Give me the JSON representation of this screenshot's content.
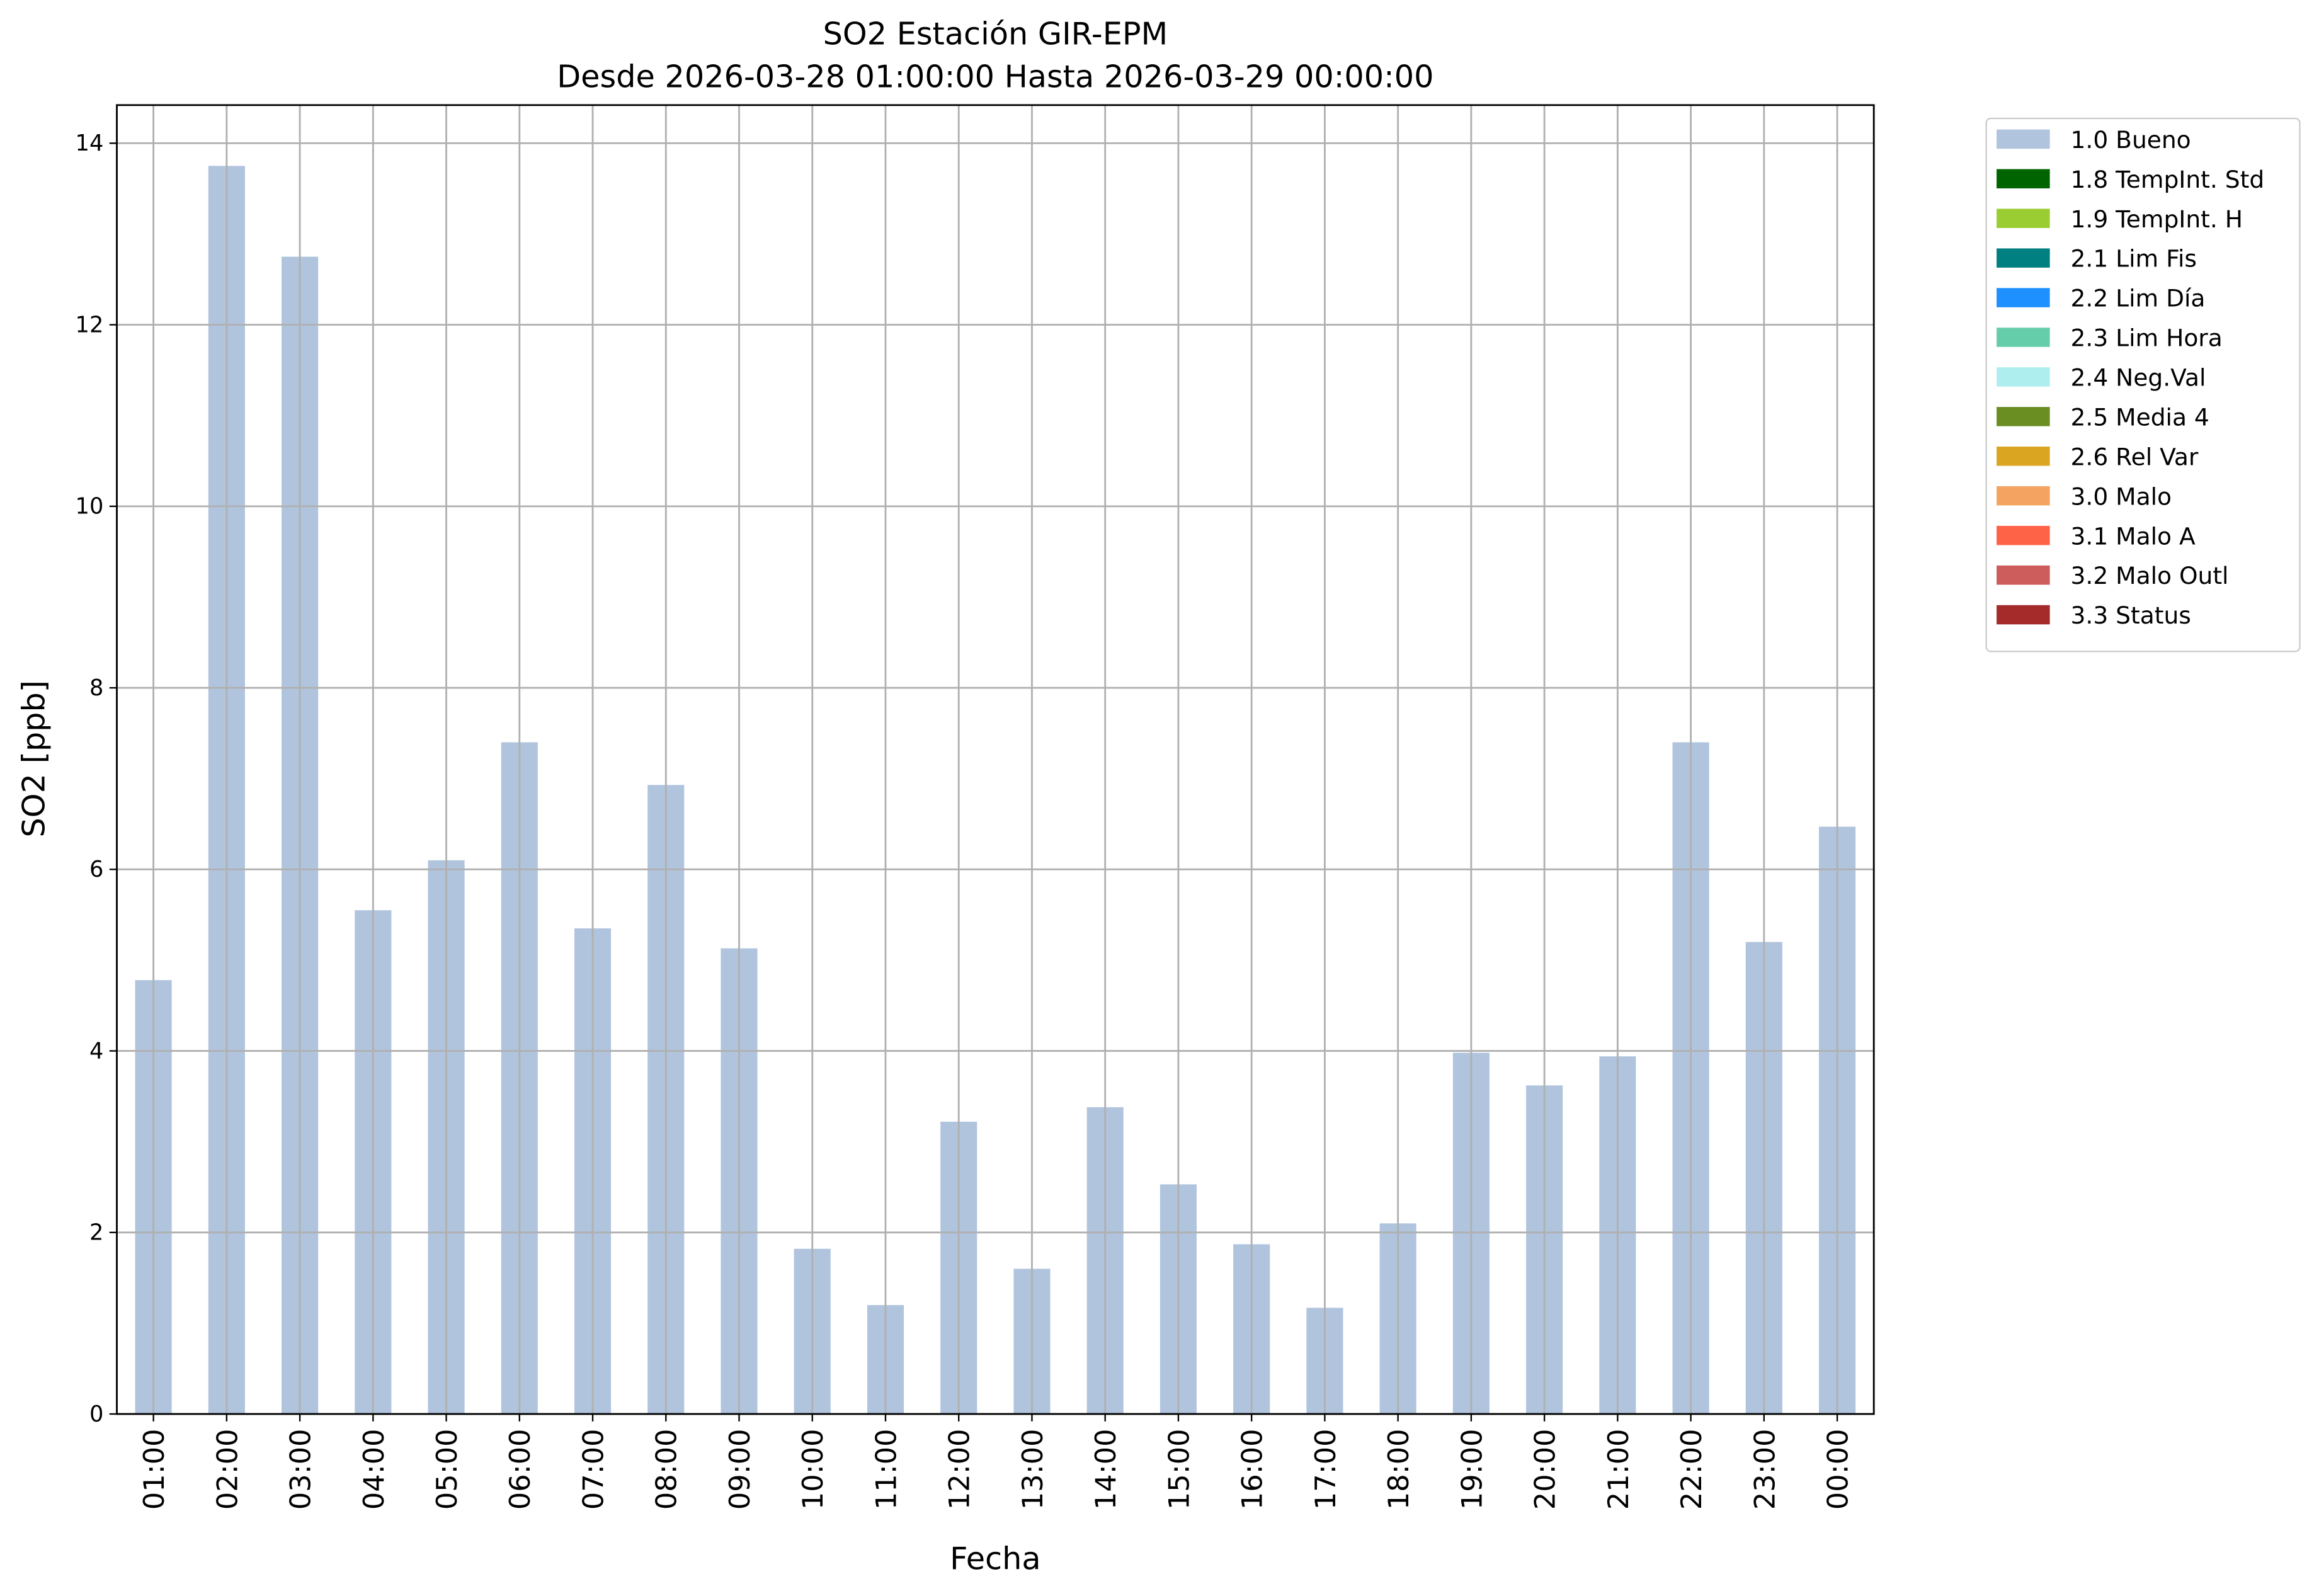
{
  "chart_data": {
    "type": "bar",
    "stacked": true,
    "title": "SO2 Estación GIR-EPM",
    "subtitle": "Desde 2026-03-28 01:00:00 Hasta 2026-03-29 00:00:00",
    "x_label": "Fecha",
    "y_label": "SO2 [ppb]",
    "categories": [
      "01:00",
      "02:00",
      "03:00",
      "04:00",
      "05:00",
      "06:00",
      "07:00",
      "08:00",
      "09:00",
      "10:00",
      "11:00",
      "12:00",
      "13:00",
      "14:00",
      "15:00",
      "16:00",
      "17:00",
      "18:00",
      "19:00",
      "20:00",
      "21:00",
      "22:00",
      "23:00",
      "00:00"
    ],
    "ylim": [
      0,
      14.42
    ],
    "yticks": [
      0,
      2,
      4,
      6,
      8,
      10,
      12,
      14
    ],
    "grid": true,
    "legend": "outside-upper-right",
    "series": [
      {
        "name": "1.0 Bueno",
        "color": "#b0c4de",
        "values": [
          4.78,
          13.75,
          12.75,
          5.55,
          6.1,
          7.4,
          5.35,
          6.93,
          5.13,
          1.82,
          1.2,
          3.22,
          1.6,
          3.38,
          2.53,
          1.87,
          1.17,
          2.1,
          3.98,
          3.62,
          3.94,
          7.4,
          5.2,
          6.47
        ]
      },
      {
        "name": "1.8 TempInt. Std",
        "color": "#006400",
        "values": [
          0,
          0,
          0,
          0,
          0,
          0,
          0,
          0,
          0,
          0,
          0,
          0,
          0,
          0,
          0,
          0,
          0,
          0,
          0,
          0,
          0,
          0,
          0,
          0
        ]
      },
      {
        "name": "1.9 TempInt. H",
        "color": "#9acd32",
        "values": [
          0,
          0,
          0,
          0,
          0,
          0,
          0,
          0,
          0,
          0,
          0,
          0,
          0,
          0,
          0,
          0,
          0,
          0,
          0,
          0,
          0,
          0,
          0,
          0
        ]
      },
      {
        "name": "2.1 Lim Fis",
        "color": "#008080",
        "values": [
          0,
          0,
          0,
          0,
          0,
          0,
          0,
          0,
          0,
          0,
          0,
          0,
          0,
          0,
          0,
          0,
          0,
          0,
          0,
          0,
          0,
          0,
          0,
          0
        ]
      },
      {
        "name": "2.2 Lim Día",
        "color": "#1e90ff",
        "values": [
          0,
          0,
          0,
          0,
          0,
          0,
          0,
          0,
          0,
          0,
          0,
          0,
          0,
          0,
          0,
          0,
          0,
          0,
          0,
          0,
          0,
          0,
          0,
          0
        ]
      },
      {
        "name": "2.3 Lim Hora",
        "color": "#66cdaa",
        "values": [
          0,
          0,
          0,
          0,
          0,
          0,
          0,
          0,
          0,
          0,
          0,
          0,
          0,
          0,
          0,
          0,
          0,
          0,
          0,
          0,
          0,
          0,
          0,
          0
        ]
      },
      {
        "name": "2.4 Neg.Val",
        "color": "#afeeee",
        "values": [
          0,
          0,
          0,
          0,
          0,
          0,
          0,
          0,
          0,
          0,
          0,
          0,
          0,
          0,
          0,
          0,
          0,
          0,
          0,
          0,
          0,
          0,
          0,
          0
        ]
      },
      {
        "name": "2.5 Media 4",
        "color": "#6b8e23",
        "values": [
          0,
          0,
          0,
          0,
          0,
          0,
          0,
          0,
          0,
          0,
          0,
          0,
          0,
          0,
          0,
          0,
          0,
          0,
          0,
          0,
          0,
          0,
          0,
          0
        ]
      },
      {
        "name": "2.6 Rel Var",
        "color": "#daa520",
        "values": [
          0,
          0,
          0,
          0,
          0,
          0,
          0,
          0,
          0,
          0,
          0,
          0,
          0,
          0,
          0,
          0,
          0,
          0,
          0,
          0,
          0,
          0,
          0,
          0
        ]
      },
      {
        "name": "3.0 Malo",
        "color": "#f4a460",
        "values": [
          0,
          0,
          0,
          0,
          0,
          0,
          0,
          0,
          0,
          0,
          0,
          0,
          0,
          0,
          0,
          0,
          0,
          0,
          0,
          0,
          0,
          0,
          0,
          0
        ]
      },
      {
        "name": "3.1 Malo A",
        "color": "#ff6347",
        "values": [
          0,
          0,
          0,
          0,
          0,
          0,
          0,
          0,
          0,
          0,
          0,
          0,
          0,
          0,
          0,
          0,
          0,
          0,
          0,
          0,
          0,
          0,
          0,
          0
        ]
      },
      {
        "name": "3.2 Malo Outl",
        "color": "#cd5c5c",
        "values": [
          0,
          0,
          0,
          0,
          0,
          0,
          0,
          0,
          0,
          0,
          0,
          0,
          0,
          0,
          0,
          0,
          0,
          0,
          0,
          0,
          0,
          0,
          0,
          0
        ]
      },
      {
        "name": "3.3 Status",
        "color": "#a52a2a",
        "values": [
          0,
          0,
          0,
          0,
          0,
          0,
          0,
          0,
          0,
          0,
          0,
          0,
          0,
          0,
          0,
          0,
          0,
          0,
          0,
          0,
          0,
          0,
          0,
          0
        ]
      }
    ]
  }
}
